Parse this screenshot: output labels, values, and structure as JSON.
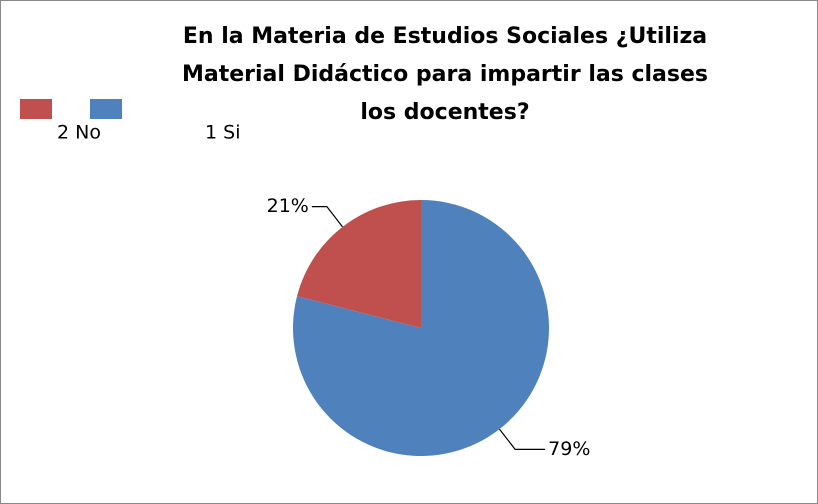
{
  "chart_data": {
    "type": "pie",
    "title": "En la Materia de Estudios Sociales ¿Utiliza Material Didáctico para impartir las clases los docentes?",
    "categories": [
      "1 Si",
      "2 No"
    ],
    "values": [
      79,
      21
    ],
    "value_labels": [
      "79%",
      "21%"
    ],
    "colors": [
      "#4f81bd",
      "#c0504d"
    ],
    "legend": "top-left"
  }
}
